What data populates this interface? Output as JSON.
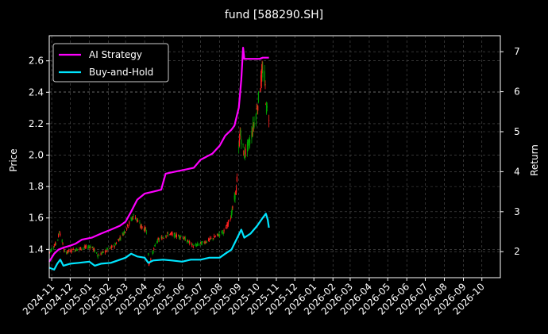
{
  "chart_data": {
    "type": "line",
    "title": "fund [588290.SH]",
    "ylabel_left": "Price",
    "ylabel_right": "Return",
    "x_ticks": [
      "2024-11",
      "2024-12",
      "2025-01",
      "2025-02",
      "2025-03",
      "2025-04",
      "2025-05",
      "2025-06",
      "2025-07",
      "2025-08",
      "2025-09",
      "2025-10",
      "2025-11",
      "2025-12",
      "2026-01",
      "2026-02",
      "2026-03",
      "2026-04",
      "2026-05",
      "2026-06",
      "2026-07",
      "2026-08",
      "2026-09",
      "2026-10"
    ],
    "y_left_ticks": [
      1.4,
      1.6,
      1.8,
      2.0,
      2.2,
      2.4,
      2.6
    ],
    "y_left_ylim": [
      1.22,
      2.76
    ],
    "y_right_ticks": [
      2,
      3,
      4,
      5,
      6,
      7
    ],
    "y_right_ylim": [
      1.35,
      7.4
    ],
    "x_range": [
      "2024-10-28",
      "2026-10-31"
    ],
    "grid": true,
    "legend_position": "top-left",
    "colors": {
      "ai_strategy": "#ff00ff",
      "buy_and_hold": "#00e5ff",
      "candle_up": "#ff2020",
      "candle_down": "#00a000"
    },
    "series": [
      {
        "name": "AI Strategy",
        "axis": "right",
        "points": [
          [
            "2024-10-28",
            1.75
          ],
          [
            "2024-11-05",
            1.95
          ],
          [
            "2024-11-12",
            2.05
          ],
          [
            "2024-11-20",
            2.1
          ],
          [
            "2024-12-01",
            2.15
          ],
          [
            "2024-12-10",
            2.2
          ],
          [
            "2024-12-20",
            2.3
          ],
          [
            "2025-01-05",
            2.35
          ],
          [
            "2025-01-20",
            2.45
          ],
          [
            "2025-02-05",
            2.55
          ],
          [
            "2025-02-20",
            2.65
          ],
          [
            "2025-03-01",
            2.75
          ],
          [
            "2025-03-10",
            3.0
          ],
          [
            "2025-03-20",
            3.3
          ],
          [
            "2025-04-01",
            3.45
          ],
          [
            "2025-04-15",
            3.5
          ],
          [
            "2025-04-28",
            3.55
          ],
          [
            "2025-05-05",
            3.95
          ],
          [
            "2025-05-20",
            4.0
          ],
          [
            "2025-06-05",
            4.05
          ],
          [
            "2025-06-20",
            4.1
          ],
          [
            "2025-07-01",
            4.3
          ],
          [
            "2025-07-20",
            4.45
          ],
          [
            "2025-08-01",
            4.65
          ],
          [
            "2025-08-10",
            4.9
          ],
          [
            "2025-08-20",
            5.05
          ],
          [
            "2025-08-25",
            5.15
          ],
          [
            "2025-09-01",
            5.6
          ],
          [
            "2025-09-05",
            6.3
          ],
          [
            "2025-09-08",
            7.1
          ],
          [
            "2025-09-10",
            6.82
          ],
          [
            "2025-10-05",
            6.82
          ],
          [
            "2025-10-10",
            6.85
          ],
          [
            "2025-10-20",
            6.85
          ]
        ]
      },
      {
        "name": "Buy-and-Hold",
        "axis": "right",
        "points": [
          [
            "2024-10-28",
            1.6
          ],
          [
            "2024-11-05",
            1.55
          ],
          [
            "2024-11-10",
            1.7
          ],
          [
            "2024-11-15",
            1.8
          ],
          [
            "2024-11-20",
            1.65
          ],
          [
            "2024-12-01",
            1.7
          ],
          [
            "2024-12-15",
            1.72
          ],
          [
            "2025-01-01",
            1.75
          ],
          [
            "2025-01-10",
            1.65
          ],
          [
            "2025-01-20",
            1.7
          ],
          [
            "2025-02-05",
            1.72
          ],
          [
            "2025-02-20",
            1.8
          ],
          [
            "2025-03-01",
            1.85
          ],
          [
            "2025-03-10",
            1.95
          ],
          [
            "2025-03-20",
            1.88
          ],
          [
            "2025-04-01",
            1.85
          ],
          [
            "2025-04-07",
            1.72
          ],
          [
            "2025-04-15",
            1.78
          ],
          [
            "2025-05-01",
            1.8
          ],
          [
            "2025-05-15",
            1.78
          ],
          [
            "2025-06-01",
            1.75
          ],
          [
            "2025-06-15",
            1.8
          ],
          [
            "2025-07-01",
            1.8
          ],
          [
            "2025-07-15",
            1.85
          ],
          [
            "2025-08-01",
            1.85
          ],
          [
            "2025-08-10",
            1.95
          ],
          [
            "2025-08-20",
            2.05
          ],
          [
            "2025-08-28",
            2.3
          ],
          [
            "2025-09-05",
            2.55
          ],
          [
            "2025-09-10",
            2.35
          ],
          [
            "2025-09-20",
            2.45
          ],
          [
            "2025-10-01",
            2.65
          ],
          [
            "2025-10-10",
            2.85
          ],
          [
            "2025-10-15",
            2.95
          ],
          [
            "2025-10-18",
            2.8
          ],
          [
            "2025-10-20",
            2.6
          ]
        ]
      }
    ],
    "candles": {
      "axis": "left",
      "price_path": [
        [
          "2024-10-28",
          1.38
        ],
        [
          "2024-11-10",
          1.45
        ],
        [
          "2024-11-14",
          1.52
        ],
        [
          "2024-11-22",
          1.38
        ],
        [
          "2024-12-10",
          1.4
        ],
        [
          "2025-01-05",
          1.42
        ],
        [
          "2025-01-15",
          1.36
        ],
        [
          "2025-02-10",
          1.42
        ],
        [
          "2025-02-25",
          1.5
        ],
        [
          "2025-03-15",
          1.62
        ],
        [
          "2025-03-25",
          1.55
        ],
        [
          "2025-04-05",
          1.52
        ],
        [
          "2025-04-08",
          1.3
        ],
        [
          "2025-04-20",
          1.45
        ],
        [
          "2025-05-10",
          1.5
        ],
        [
          "2025-06-01",
          1.48
        ],
        [
          "2025-06-20",
          1.42
        ],
        [
          "2025-07-10",
          1.45
        ],
        [
          "2025-07-25",
          1.48
        ],
        [
          "2025-08-10",
          1.52
        ],
        [
          "2025-08-20",
          1.62
        ],
        [
          "2025-08-28",
          1.78
        ],
        [
          "2025-09-03",
          2.15
        ],
        [
          "2025-09-10",
          2.0
        ],
        [
          "2025-09-20",
          2.1
        ],
        [
          "2025-10-01",
          2.3
        ],
        [
          "2025-10-08",
          2.5
        ],
        [
          "2025-10-12",
          2.55
        ],
        [
          "2025-10-16",
          2.3
        ],
        [
          "2025-10-20",
          2.25
        ]
      ]
    }
  }
}
